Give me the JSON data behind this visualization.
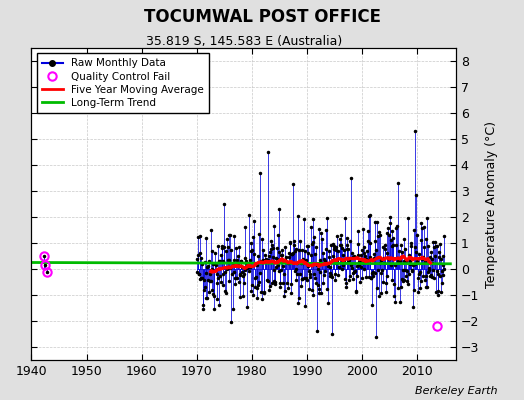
{
  "title": "TOCUMWAL POST OFFICE",
  "subtitle": "35.819 S, 145.583 E (Australia)",
  "ylabel": "Temperature Anomaly (°C)",
  "credit": "Berkeley Earth",
  "xlim": [
    1940,
    2017
  ],
  "ylim": [
    -3.5,
    8.5
  ],
  "yticks": [
    -3,
    -2,
    -1,
    0,
    1,
    2,
    3,
    4,
    5,
    6,
    7,
    8
  ],
  "xticks": [
    1940,
    1950,
    1960,
    1970,
    1980,
    1990,
    2000,
    2010
  ],
  "bg_color": "#e0e0e0",
  "plot_bg_color": "#ffffff",
  "raw_color": "#0000dd",
  "moving_avg_color": "#ff0000",
  "trend_color": "#00bb00",
  "qc_color": "#ff00ff",
  "raw_lw": 0.6,
  "moving_avg_lw": 2.2,
  "trend_lw": 2.0,
  "seed": 42,
  "early_years": [
    1942.25,
    1942.5,
    1942.75
  ],
  "early_vals": [
    0.5,
    0.15,
    -0.1
  ],
  "qc_fail_points": [
    [
      1942.25,
      0.5
    ],
    [
      1942.5,
      0.15
    ],
    [
      1942.75,
      -0.1
    ],
    [
      2013.5,
      -2.2
    ]
  ],
  "peaks": [
    [
      1983.0,
      4.5
    ],
    [
      1981.5,
      3.7
    ],
    [
      2009.5,
      5.3
    ],
    [
      1975.0,
      2.5
    ],
    [
      1998.0,
      3.5
    ],
    [
      2006.5,
      3.3
    ],
    [
      1994.5,
      -2.5
    ],
    [
      2002.5,
      -2.6
    ]
  ],
  "trend_x": [
    1940,
    2016
  ],
  "trend_y": [
    0.25,
    0.2
  ],
  "main_start": 1970,
  "main_end": 2015
}
